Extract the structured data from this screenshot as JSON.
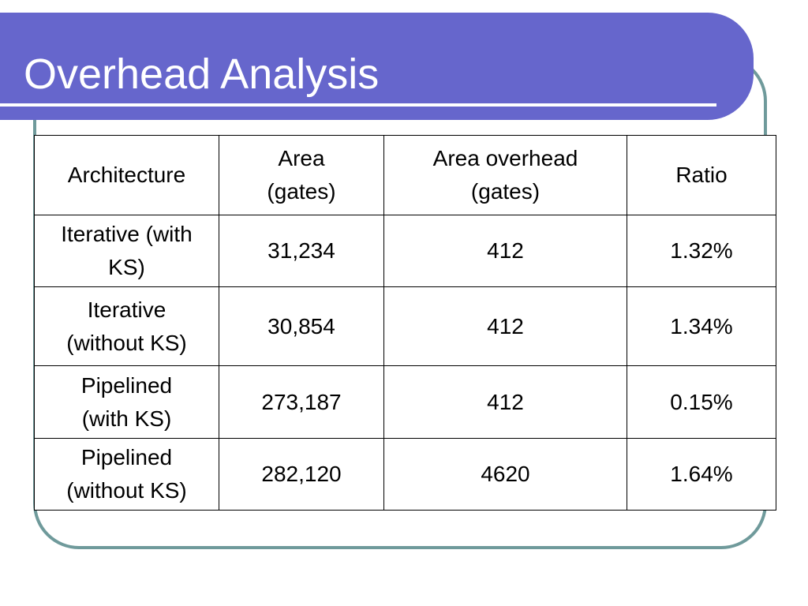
{
  "slide": {
    "title": "Overhead Analysis"
  },
  "table": {
    "headers": [
      {
        "lines": [
          "Architecture"
        ]
      },
      {
        "lines": [
          "Area",
          "(gates)"
        ]
      },
      {
        "lines": [
          "Area overhead",
          "(gates)"
        ]
      },
      {
        "lines": [
          "Ratio"
        ]
      }
    ],
    "rows": [
      {
        "architecture": [
          "Iterative (with",
          "KS)"
        ],
        "area": "31,234",
        "area_overhead": "412",
        "ratio": "1.32%"
      },
      {
        "architecture": [
          "Iterative",
          "(without KS)"
        ],
        "area": "30,854",
        "area_overhead": "412",
        "ratio": "1.34%"
      },
      {
        "architecture": [
          "Pipelined",
          "(with KS)"
        ],
        "area": "273,187",
        "area_overhead": "412",
        "ratio": "0.15%"
      },
      {
        "architecture": [
          "Pipelined",
          "(without KS)"
        ],
        "area": "282,120",
        "area_overhead": "4620",
        "ratio": "1.64%"
      }
    ]
  },
  "colors": {
    "title_bar": "#6666cc",
    "frame_border": "#6f9a9b",
    "title_text": "#ffffff"
  }
}
